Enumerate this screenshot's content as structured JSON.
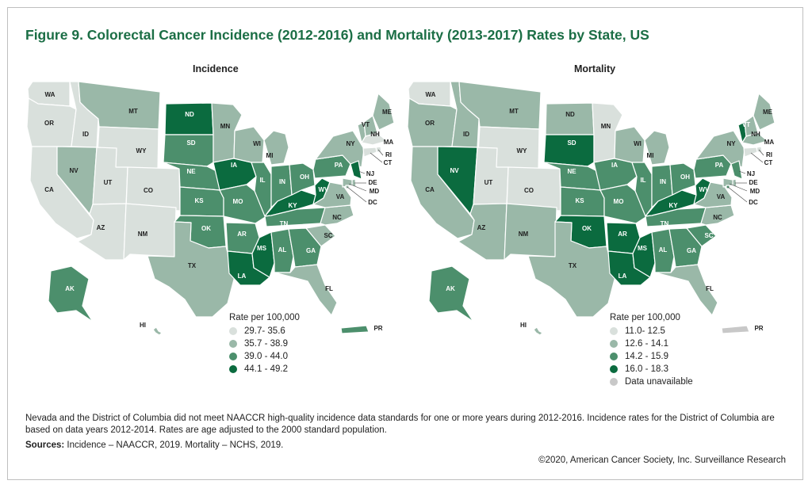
{
  "figure": {
    "title": "Figure 9. Colorectal Cancer Incidence (2012-2016) and Mortality (2013-2017) Rates by State, US"
  },
  "incidence": {
    "title": "Incidence",
    "legend_title": "Rate per 100,000",
    "legend": [
      {
        "label": "29.7- 35.6",
        "color": "#d9e0dc"
      },
      {
        "label": "35.7 - 38.9",
        "color": "#9ab8a8"
      },
      {
        "label": "39.0 - 44.0",
        "color": "#4c8f6c"
      },
      {
        "label": "44.1 - 49.2",
        "color": "#0b6b3f"
      }
    ]
  },
  "mortality": {
    "title": "Mortality",
    "legend_title": "Rate per 100,000",
    "legend": [
      {
        "label": "11.0- 12.5",
        "color": "#d9e0dc"
      },
      {
        "label": "12.6 - 14.1",
        "color": "#9ab8a8"
      },
      {
        "label": "14.2 - 15.9",
        "color": "#4c8f6c"
      },
      {
        "label": "16.0 - 18.3",
        "color": "#0b6b3f"
      },
      {
        "label": "Data unavailable",
        "color": "#c8c8c8"
      }
    ]
  },
  "states": [
    {
      "code": "WA",
      "inc": 0,
      "mort": 0
    },
    {
      "code": "OR",
      "inc": 0,
      "mort": 1
    },
    {
      "code": "CA",
      "inc": 0,
      "mort": 1
    },
    {
      "code": "ID",
      "inc": 0,
      "mort": 1
    },
    {
      "code": "NV",
      "inc": 1,
      "mort": 3
    },
    {
      "code": "MT",
      "inc": 1,
      "mort": 1
    },
    {
      "code": "WY",
      "inc": 0,
      "mort": 0
    },
    {
      "code": "UT",
      "inc": 0,
      "mort": 0
    },
    {
      "code": "CO",
      "inc": 0,
      "mort": 0
    },
    {
      "code": "AZ",
      "inc": 0,
      "mort": 1
    },
    {
      "code": "NM",
      "inc": 0,
      "mort": 1
    },
    {
      "code": "ND",
      "inc": 3,
      "mort": 1
    },
    {
      "code": "SD",
      "inc": 2,
      "mort": 3
    },
    {
      "code": "NE",
      "inc": 2,
      "mort": 2
    },
    {
      "code": "KS",
      "inc": 2,
      "mort": 2
    },
    {
      "code": "OK",
      "inc": 2,
      "mort": 3
    },
    {
      "code": "TX",
      "inc": 1,
      "mort": 1
    },
    {
      "code": "MN",
      "inc": 1,
      "mort": 0
    },
    {
      "code": "IA",
      "inc": 3,
      "mort": 2
    },
    {
      "code": "MO",
      "inc": 2,
      "mort": 2
    },
    {
      "code": "AR",
      "inc": 2,
      "mort": 3
    },
    {
      "code": "LA",
      "inc": 3,
      "mort": 3
    },
    {
      "code": "WI",
      "inc": 1,
      "mort": 1
    },
    {
      "code": "IL",
      "inc": 2,
      "mort": 2
    },
    {
      "code": "MS",
      "inc": 3,
      "mort": 3
    },
    {
      "code": "MI",
      "inc": 1,
      "mort": 1
    },
    {
      "code": "IN",
      "inc": 2,
      "mort": 2
    },
    {
      "code": "KY",
      "inc": 3,
      "mort": 3
    },
    {
      "code": "TN",
      "inc": 2,
      "mort": 2
    },
    {
      "code": "AL",
      "inc": 2,
      "mort": 2
    },
    {
      "code": "OH",
      "inc": 2,
      "mort": 2
    },
    {
      "code": "WV",
      "inc": 3,
      "mort": 3
    },
    {
      "code": "GA",
      "inc": 2,
      "mort": 2
    },
    {
      "code": "FL",
      "inc": 1,
      "mort": 1
    },
    {
      "code": "SC",
      "inc": 1,
      "mort": 2
    },
    {
      "code": "NC",
      "inc": 1,
      "mort": 1
    },
    {
      "code": "VA",
      "inc": 1,
      "mort": 1
    },
    {
      "code": "PA",
      "inc": 2,
      "mort": 2
    },
    {
      "code": "NY",
      "inc": 1,
      "mort": 1
    },
    {
      "code": "ME",
      "inc": 1,
      "mort": 1
    },
    {
      "code": "VT",
      "inc": 1,
      "mort": 3
    },
    {
      "code": "NH",
      "inc": 1,
      "mort": 1
    },
    {
      "code": "MA",
      "inc": 0,
      "mort": 1
    },
    {
      "code": "RI",
      "inc": 0,
      "mort": 0
    },
    {
      "code": "CT",
      "inc": 0,
      "mort": 0
    },
    {
      "code": "NJ",
      "inc": 3,
      "mort": 2
    },
    {
      "code": "DE",
      "inc": 1,
      "mort": 1
    },
    {
      "code": "MD",
      "inc": 1,
      "mort": 1
    },
    {
      "code": "DC",
      "inc": 1,
      "mort": 2
    },
    {
      "code": "AK",
      "inc": 2,
      "mort": 2
    },
    {
      "code": "HI",
      "inc": 1,
      "mort": 1
    },
    {
      "code": "PR",
      "inc": 2,
      "mort": 4
    }
  ],
  "footnote": "Nevada and the District of Columbia did not meet NAACCR high-quality incidence data standards for one or more years during 2012-2016. Incidence rates for the District of Columbia are based on data years 2012-2014. Rates are age adjusted to the 2000 standard population.",
  "sources": {
    "label": "Sources:",
    "text": " Incidence – NAACCR, 2019. Mortality – NCHS, 2019."
  },
  "copyright": "©2020, American Cancer Society, Inc. Surveillance Research"
}
